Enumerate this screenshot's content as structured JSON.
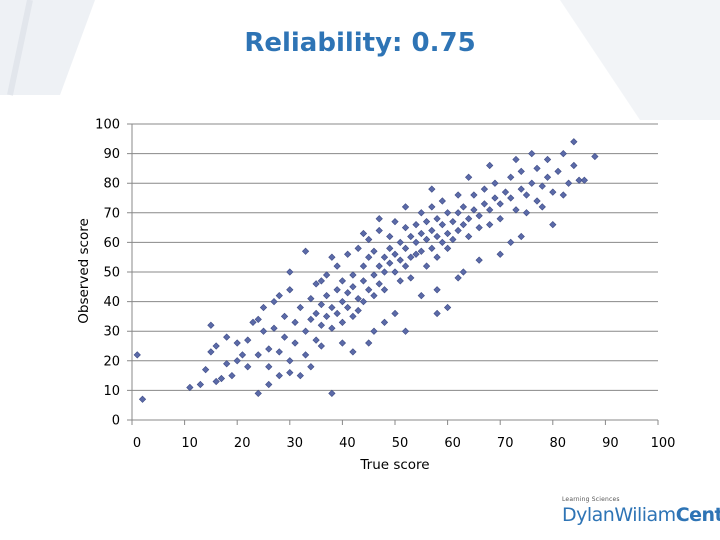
{
  "slide": {
    "title": "Reliability: 0.75"
  },
  "logo": {
    "small_text": "Learning Sciences",
    "name_part1": "DylanWiliam",
    "name_part2": "Center"
  },
  "colors": {
    "title": "#2e74b5",
    "marker": "#5b6aa8",
    "marker_stroke": "#3f4c86",
    "grid": "#888888"
  },
  "chart_data": {
    "type": "scatter",
    "title": "Reliability: 0.75",
    "xlabel": "True score",
    "ylabel": "Observed score",
    "xlim": [
      0,
      100
    ],
    "ylim": [
      0,
      100
    ],
    "x_ticks": [
      0,
      10,
      20,
      30,
      40,
      50,
      60,
      70,
      80,
      90,
      100
    ],
    "y_ticks": [
      0,
      10,
      20,
      30,
      40,
      50,
      60,
      70,
      80,
      90,
      100
    ],
    "grid": "horizontal",
    "legend": "none",
    "marker": "diamond",
    "points": [
      [
        1,
        22
      ],
      [
        2,
        7
      ],
      [
        11,
        11
      ],
      [
        13,
        12
      ],
      [
        14,
        17
      ],
      [
        15,
        23
      ],
      [
        15,
        32
      ],
      [
        16,
        25
      ],
      [
        16,
        13
      ],
      [
        17,
        14
      ],
      [
        18,
        19
      ],
      [
        18,
        28
      ],
      [
        19,
        15
      ],
      [
        20,
        26
      ],
      [
        20,
        20
      ],
      [
        21,
        22
      ],
      [
        22,
        27
      ],
      [
        23,
        33
      ],
      [
        24,
        22
      ],
      [
        24,
        9
      ],
      [
        25,
        30
      ],
      [
        25,
        38
      ],
      [
        26,
        24
      ],
      [
        26,
        18
      ],
      [
        27,
        31
      ],
      [
        27,
        40
      ],
      [
        28,
        23
      ],
      [
        28,
        15
      ],
      [
        29,
        28
      ],
      [
        29,
        35
      ],
      [
        30,
        20
      ],
      [
        30,
        44
      ],
      [
        31,
        26
      ],
      [
        31,
        33
      ],
      [
        32,
        15
      ],
      [
        32,
        38
      ],
      [
        33,
        30
      ],
      [
        33,
        22
      ],
      [
        34,
        41
      ],
      [
        34,
        34
      ],
      [
        35,
        27
      ],
      [
        35,
        46
      ],
      [
        35,
        36
      ],
      [
        36,
        32
      ],
      [
        36,
        39
      ],
      [
        36,
        25
      ],
      [
        37,
        42
      ],
      [
        37,
        35
      ],
      [
        37,
        49
      ],
      [
        38,
        9
      ],
      [
        38,
        38
      ],
      [
        38,
        31
      ],
      [
        39,
        44
      ],
      [
        39,
        36
      ],
      [
        39,
        52
      ],
      [
        40,
        40
      ],
      [
        40,
        33
      ],
      [
        40,
        47
      ],
      [
        41,
        38
      ],
      [
        41,
        43
      ],
      [
        41,
        56
      ],
      [
        42,
        35
      ],
      [
        42,
        45
      ],
      [
        42,
        49
      ],
      [
        43,
        41
      ],
      [
        43,
        58
      ],
      [
        43,
        37
      ],
      [
        44,
        47
      ],
      [
        44,
        52
      ],
      [
        44,
        40
      ],
      [
        45,
        44
      ],
      [
        45,
        61
      ],
      [
        45,
        55
      ],
      [
        46,
        49
      ],
      [
        46,
        42
      ],
      [
        46,
        57
      ],
      [
        47,
        52
      ],
      [
        47,
        46
      ],
      [
        47,
        64
      ],
      [
        48,
        55
      ],
      [
        48,
        50
      ],
      [
        48,
        44
      ],
      [
        49,
        58
      ],
      [
        49,
        53
      ],
      [
        49,
        62
      ],
      [
        50,
        50
      ],
      [
        50,
        56
      ],
      [
        50,
        67
      ],
      [
        51,
        54
      ],
      [
        51,
        47
      ],
      [
        51,
        60
      ],
      [
        52,
        58
      ],
      [
        52,
        52
      ],
      [
        52,
        65
      ],
      [
        53,
        55
      ],
      [
        53,
        62
      ],
      [
        53,
        48
      ],
      [
        54,
        60
      ],
      [
        54,
        66
      ],
      [
        54,
        56
      ],
      [
        55,
        57
      ],
      [
        55,
        63
      ],
      [
        55,
        70
      ],
      [
        56,
        61
      ],
      [
        56,
        52
      ],
      [
        56,
        67
      ],
      [
        57,
        64
      ],
      [
        57,
        58
      ],
      [
        57,
        72
      ],
      [
        58,
        62
      ],
      [
        58,
        68
      ],
      [
        58,
        55
      ],
      [
        59,
        66
      ],
      [
        59,
        60
      ],
      [
        59,
        74
      ],
      [
        60,
        63
      ],
      [
        60,
        70
      ],
      [
        60,
        58
      ],
      [
        61,
        67
      ],
      [
        61,
        61
      ],
      [
        62,
        70
      ],
      [
        62,
        64
      ],
      [
        62,
        76
      ],
      [
        63,
        66
      ],
      [
        63,
        72
      ],
      [
        64,
        68
      ],
      [
        64,
        62
      ],
      [
        65,
        71
      ],
      [
        65,
        76
      ],
      [
        66,
        69
      ],
      [
        66,
        65
      ],
      [
        67,
        73
      ],
      [
        67,
        78
      ],
      [
        68,
        71
      ],
      [
        68,
        66
      ],
      [
        69,
        75
      ],
      [
        69,
        80
      ],
      [
        70,
        73
      ],
      [
        70,
        68
      ],
      [
        71,
        77
      ],
      [
        72,
        75
      ],
      [
        72,
        82
      ],
      [
        73,
        71
      ],
      [
        74,
        78
      ],
      [
        74,
        84
      ],
      [
        75,
        76
      ],
      [
        75,
        70
      ],
      [
        76,
        80
      ],
      [
        77,
        74
      ],
      [
        77,
        85
      ],
      [
        78,
        79
      ],
      [
        79,
        82
      ],
      [
        79,
        88
      ],
      [
        80,
        77
      ],
      [
        81,
        84
      ],
      [
        82,
        90
      ],
      [
        83,
        80
      ],
      [
        84,
        86
      ],
      [
        84,
        94
      ],
      [
        85,
        81
      ],
      [
        86,
        81
      ],
      [
        88,
        89
      ],
      [
        34,
        18
      ],
      [
        40,
        26
      ],
      [
        42,
        23
      ],
      [
        46,
        30
      ],
      [
        50,
        36
      ],
      [
        52,
        30
      ],
      [
        55,
        42
      ],
      [
        58,
        44
      ],
      [
        60,
        38
      ],
      [
        62,
        48
      ],
      [
        45,
        26
      ],
      [
        48,
        33
      ],
      [
        36,
        47
      ],
      [
        38,
        55
      ],
      [
        30,
        50
      ],
      [
        33,
        57
      ],
      [
        44,
        63
      ],
      [
        47,
        68
      ],
      [
        52,
        72
      ],
      [
        57,
        78
      ],
      [
        64,
        82
      ],
      [
        68,
        86
      ],
      [
        73,
        88
      ],
      [
        76,
        90
      ],
      [
        70,
        56
      ],
      [
        74,
        62
      ],
      [
        80,
        66
      ],
      [
        72,
        60
      ],
      [
        78,
        72
      ],
      [
        82,
        76
      ],
      [
        66,
        54
      ],
      [
        63,
        50
      ],
      [
        58,
        36
      ],
      [
        28,
        42
      ],
      [
        24,
        34
      ],
      [
        22,
        18
      ],
      [
        26,
        12
      ],
      [
        30,
        16
      ]
    ]
  }
}
